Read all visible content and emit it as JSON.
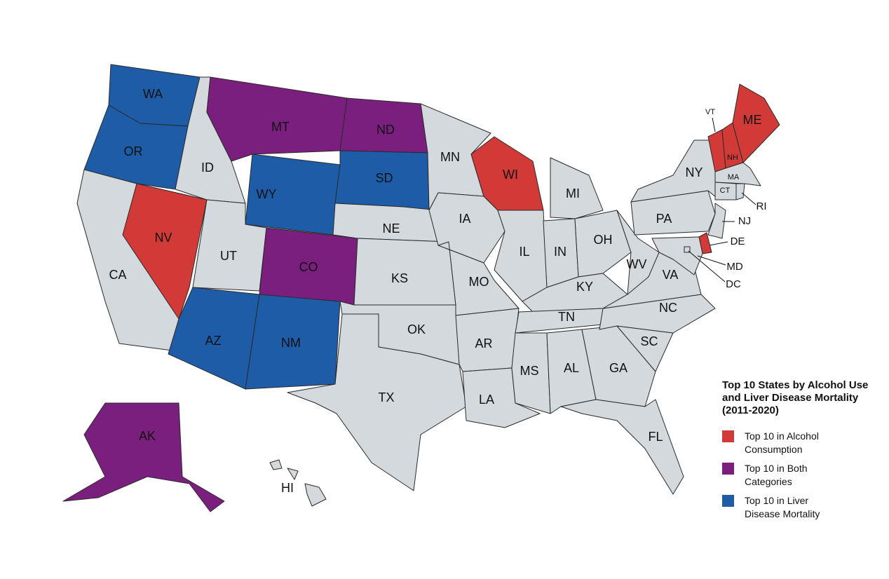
{
  "map": {
    "states": [
      {
        "label": "WA",
        "color": "#1f5ca8"
      },
      {
        "label": "OR",
        "color": "#1f5ca8"
      },
      {
        "label": "CA",
        "color": "#d3d9dc"
      },
      {
        "label": "NV",
        "color": "#d13a36"
      },
      {
        "label": "ID",
        "color": "#d3d9dc"
      },
      {
        "label": "MT",
        "color": "#7b1f7e"
      },
      {
        "label": "WY",
        "color": "#1f5ca8"
      },
      {
        "label": "UT",
        "color": "#d3d9dc"
      },
      {
        "label": "CO",
        "color": "#7b1f7e"
      },
      {
        "label": "AZ",
        "color": "#1f5ca8"
      },
      {
        "label": "NM",
        "color": "#1f5ca8"
      },
      {
        "label": "ND",
        "color": "#7b1f7e"
      },
      {
        "label": "SD",
        "color": "#1f5ca8"
      },
      {
        "label": "NE",
        "color": "#d3d9dc"
      },
      {
        "label": "KS",
        "color": "#d3d9dc"
      },
      {
        "label": "OK",
        "color": "#d3d9dc"
      },
      {
        "label": "TX",
        "color": "#d3d9dc"
      },
      {
        "label": "MN",
        "color": "#d3d9dc"
      },
      {
        "label": "IA",
        "color": "#d3d9dc"
      },
      {
        "label": "MO",
        "color": "#d3d9dc"
      },
      {
        "label": "AR",
        "color": "#d3d9dc"
      },
      {
        "label": "LA",
        "color": "#d3d9dc"
      },
      {
        "label": "WI",
        "color": "#d13a36"
      },
      {
        "label": "IL",
        "color": "#d3d9dc"
      },
      {
        "label": "MI",
        "color": "#d3d9dc"
      },
      {
        "label": "IN",
        "color": "#d3d9dc"
      },
      {
        "label": "OH",
        "color": "#d3d9dc"
      },
      {
        "label": "KY",
        "color": "#d3d9dc"
      },
      {
        "label": "TN",
        "color": "#d3d9dc"
      },
      {
        "label": "MS",
        "color": "#d3d9dc"
      },
      {
        "label": "AL",
        "color": "#d3d9dc"
      },
      {
        "label": "GA",
        "color": "#d3d9dc"
      },
      {
        "label": "FL",
        "color": "#d3d9dc"
      },
      {
        "label": "SC",
        "color": "#d3d9dc"
      },
      {
        "label": "NC",
        "color": "#d3d9dc"
      },
      {
        "label": "VA",
        "color": "#d3d9dc"
      },
      {
        "label": "WV",
        "color": "#d3d9dc"
      },
      {
        "label": "PA",
        "color": "#d3d9dc"
      },
      {
        "label": "NY",
        "color": "#d3d9dc"
      },
      {
        "label": "NJ",
        "color": "#d3d9dc"
      },
      {
        "label": "DE",
        "color": "#d13a36"
      },
      {
        "label": "MD",
        "color": "#d3d9dc"
      },
      {
        "label": "DC",
        "color": "#d3d9dc"
      },
      {
        "label": "VT",
        "color": "#d13a36"
      },
      {
        "label": "NH",
        "color": "#d13a36"
      },
      {
        "label": "ME",
        "color": "#d13a36"
      },
      {
        "label": "MA",
        "color": "#d3d9dc"
      },
      {
        "label": "CT",
        "color": "#d3d9dc"
      },
      {
        "label": "RI",
        "color": "#d3d9dc"
      },
      {
        "label": "AK",
        "color": "#7b1f7e"
      },
      {
        "label": "HI",
        "color": "#d3d9dc"
      }
    ],
    "legend": {
      "title": "Top 10 States by Alcohol Use and Liver Disease Mortality (2011-2020)",
      "items": [
        {
          "label": "Top 10 in Alcohol Consumption",
          "color": "#d13a36"
        },
        {
          "label": "Top 10 in Both Categories",
          "color": "#7b1f7e"
        },
        {
          "label": "Top 10 in Liver Disease Mortality",
          "color": "#1f5ca8"
        }
      ]
    }
  }
}
